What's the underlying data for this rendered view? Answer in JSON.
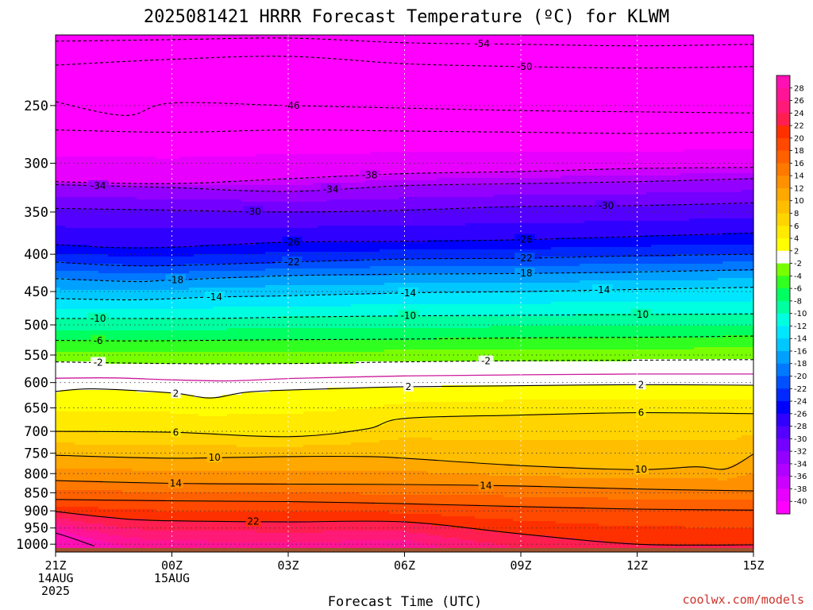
{
  "title": "2025081421 HRRR Forecast Temperature (ºC) for KLWM",
  "credit": "coolwx.com/models",
  "colors": {
    "background": "#ffffff",
    "ground": "#a0522d",
    "zero_line": "#cc1a9a",
    "credit": "#d0322b"
  },
  "chart_data": {
    "type": "heatmap",
    "title": "2025081421 HRRR Forecast Temperature (ºC) for KLWM",
    "xlabel": "Forecast Time (UTC)",
    "ylabel": "",
    "x_domain_hours": [
      0,
      18
    ],
    "x_ticks": [
      {
        "h": 0,
        "l1": "21Z",
        "l2": "14AUG",
        "l3": "2025"
      },
      {
        "h": 3,
        "l1": "00Z",
        "l2": "15AUG",
        "l3": ""
      },
      {
        "h": 6,
        "l1": "03Z",
        "l2": "",
        "l3": ""
      },
      {
        "h": 9,
        "l1": "06Z",
        "l2": "",
        "l3": ""
      },
      {
        "h": 12,
        "l1": "09Z",
        "l2": "",
        "l3": ""
      },
      {
        "h": 15,
        "l1": "12Z",
        "l2": "",
        "l3": ""
      },
      {
        "h": 18,
        "l1": "15Z",
        "l2": "",
        "l3": ""
      }
    ],
    "y_axis": "pressure (hPa), log scale, inverted",
    "y_domain_hpa": [
      1025,
      200
    ],
    "y_ticks": [
      250,
      300,
      350,
      400,
      450,
      500,
      550,
      600,
      650,
      700,
      750,
      800,
      850,
      900,
      950,
      1000
    ],
    "ground_pressure_hpa": 1012,
    "colorbar": {
      "unit": "ºC",
      "boundaries": [
        -42,
        -40,
        -38,
        -36,
        -34,
        -32,
        -30,
        -28,
        -26,
        -24,
        -22,
        -20,
        -18,
        -16,
        -14,
        -12,
        -10,
        -8,
        -6,
        -4,
        -2,
        2,
        4,
        6,
        8,
        10,
        12,
        14,
        16,
        18,
        20,
        22,
        24,
        26,
        28,
        30
      ],
      "colors": [
        "#ff00ff",
        "#e800ff",
        "#cc00ff",
        "#b000ff",
        "#9400ff",
        "#7400ff",
        "#5400ff",
        "#3000ff",
        "#0000ff",
        "#0028ff",
        "#0050ff",
        "#0078ff",
        "#00a0ff",
        "#00c8ff",
        "#00e6ff",
        "#00ffe0",
        "#00ffa0",
        "#00ff60",
        "#30ff20",
        "#78ff00",
        "#ffffff",
        "#ffff00",
        "#ffea00",
        "#ffd400",
        "#ffbe00",
        "#ffa800",
        "#ff9000",
        "#ff7800",
        "#ff6000",
        "#ff4800",
        "#ff3000",
        "#ff1e50",
        "#ff1a78",
        "#ff1496",
        "#ff10b4"
      ],
      "labels": [
        28,
        26,
        24,
        22,
        20,
        18,
        16,
        14,
        12,
        10,
        8,
        6,
        4,
        2,
        -2,
        -4,
        -6,
        -8,
        -10,
        -12,
        -14,
        -16,
        -18,
        -20,
        -22,
        -24,
        -26,
        -28,
        -30,
        -32,
        -34,
        -36,
        -38,
        -40
      ]
    },
    "isotherms": [
      {
        "t": -54,
        "label_hours": [
          11.0
        ],
        "p": [
          [
            0,
            204
          ],
          [
            3,
            203
          ],
          [
            6,
            202
          ],
          [
            9,
            205
          ],
          [
            12,
            206
          ],
          [
            15,
            207
          ],
          [
            18,
            206
          ]
        ]
      },
      {
        "t": -50,
        "label_hours": [
          12.1
        ],
        "p": [
          [
            0,
            220
          ],
          [
            3,
            216
          ],
          [
            6,
            214
          ],
          [
            9,
            219
          ],
          [
            12,
            221
          ],
          [
            15,
            222
          ],
          [
            18,
            221
          ]
        ]
      },
      {
        "t": -46,
        "label_hours": [
          6.1
        ],
        "p": [
          [
            0,
            247
          ],
          [
            1.8,
            258
          ],
          [
            3,
            248
          ],
          [
            6,
            250
          ],
          [
            9,
            252
          ],
          [
            12,
            254
          ],
          [
            15,
            255
          ],
          [
            18,
            256
          ]
        ]
      },
      {
        "t": -42,
        "label_hours": [],
        "p": [
          [
            0,
            270
          ],
          [
            3,
            272
          ],
          [
            6,
            270
          ],
          [
            9,
            271
          ],
          [
            12,
            272
          ],
          [
            15,
            273
          ],
          [
            18,
            272
          ]
        ]
      },
      {
        "t": -38,
        "label_hours": [
          8.1
        ],
        "p": [
          [
            0,
            318
          ],
          [
            3,
            320
          ],
          [
            6,
            315
          ],
          [
            9,
            310
          ],
          [
            12,
            308
          ],
          [
            15,
            305
          ],
          [
            18,
            304
          ]
        ]
      },
      {
        "t": -34,
        "label_hours": [
          1.1,
          7.1
        ],
        "p": [
          [
            0,
            321
          ],
          [
            3,
            324
          ],
          [
            6,
            328
          ],
          [
            9,
            322
          ],
          [
            12,
            320
          ],
          [
            15,
            318
          ],
          [
            18,
            315
          ]
        ]
      },
      {
        "t": -30,
        "label_hours": [
          5.1,
          14.2
        ],
        "p": [
          [
            0,
            346
          ],
          [
            3,
            348
          ],
          [
            6,
            350
          ],
          [
            9,
            348
          ],
          [
            12,
            344
          ],
          [
            15,
            343
          ],
          [
            18,
            340
          ]
        ]
      },
      {
        "t": -26,
        "label_hours": [
          6.1,
          12.1
        ],
        "p": [
          [
            0,
            388
          ],
          [
            2.3,
            392
          ],
          [
            6,
            385
          ],
          [
            9,
            384
          ],
          [
            12,
            382
          ],
          [
            15,
            378
          ],
          [
            18,
            374
          ]
        ]
      },
      {
        "t": -22,
        "label_hours": [
          6.1,
          12.1
        ],
        "p": [
          [
            0,
            410
          ],
          [
            2.3,
            415
          ],
          [
            6,
            410
          ],
          [
            9,
            406
          ],
          [
            12,
            405
          ],
          [
            15,
            402
          ],
          [
            18,
            400
          ]
        ]
      },
      {
        "t": -18,
        "label_hours": [
          3.1,
          12.1
        ],
        "p": [
          [
            0,
            432
          ],
          [
            2,
            436
          ],
          [
            3,
            434
          ],
          [
            6,
            428
          ],
          [
            9,
            426
          ],
          [
            12,
            425
          ],
          [
            15,
            423
          ],
          [
            18,
            420
          ]
        ]
      },
      {
        "t": -14,
        "label_hours": [
          4.1,
          9.1,
          14.1
        ],
        "p": [
          [
            0,
            460
          ],
          [
            2,
            462
          ],
          [
            4,
            458
          ],
          [
            6,
            456
          ],
          [
            9,
            452
          ],
          [
            12,
            450
          ],
          [
            15,
            447
          ],
          [
            18,
            444
          ]
        ]
      },
      {
        "t": -10,
        "label_hours": [
          1.1,
          9.1,
          15.1
        ],
        "p": [
          [
            0,
            490
          ],
          [
            2,
            490
          ],
          [
            4,
            490
          ],
          [
            6,
            488
          ],
          [
            9,
            486
          ],
          [
            12,
            485
          ],
          [
            15,
            484
          ],
          [
            18,
            483
          ]
        ]
      },
      {
        "t": -6,
        "label_hours": [
          1.1
        ],
        "p": [
          [
            0,
            525
          ],
          [
            2,
            526
          ],
          [
            4,
            525
          ],
          [
            6,
            524
          ],
          [
            9,
            523
          ],
          [
            12,
            521
          ],
          [
            15,
            520
          ],
          [
            18,
            518
          ]
        ]
      },
      {
        "t": -2,
        "label_hours": [
          1.1,
          11.1
        ],
        "p": [
          [
            0,
            562
          ],
          [
            3,
            565
          ],
          [
            6,
            565
          ],
          [
            9,
            562
          ],
          [
            12,
            560
          ],
          [
            15,
            559
          ],
          [
            18,
            558
          ]
        ]
      },
      {
        "t": 2,
        "label_hours": [
          3.1,
          9.1,
          15.1
        ],
        "p": [
          [
            0,
            617
          ],
          [
            1,
            612
          ],
          [
            3,
            620
          ],
          [
            4,
            630
          ],
          [
            5,
            618
          ],
          [
            7,
            612
          ],
          [
            9,
            608
          ],
          [
            12,
            606
          ],
          [
            15,
            604
          ],
          [
            18,
            605
          ]
        ]
      },
      {
        "t": 6,
        "label_hours": [
          3.1,
          15.1
        ],
        "p": [
          [
            0,
            700
          ],
          [
            3,
            702
          ],
          [
            6,
            712
          ],
          [
            8,
            695
          ],
          [
            9,
            672
          ],
          [
            12,
            665
          ],
          [
            15,
            660
          ],
          [
            18,
            662
          ]
        ]
      },
      {
        "t": 10,
        "label_hours": [
          4.1,
          15.1
        ],
        "p": [
          [
            0,
            755
          ],
          [
            3,
            762
          ],
          [
            6,
            758
          ],
          [
            8,
            758
          ],
          [
            9,
            762
          ],
          [
            12,
            780
          ],
          [
            15,
            790
          ],
          [
            16.5,
            783
          ],
          [
            17.3,
            788
          ],
          [
            18,
            752
          ]
        ]
      },
      {
        "t": 14,
        "label_hours": [
          3.1,
          11.1
        ],
        "p": [
          [
            0,
            818
          ],
          [
            3,
            825
          ],
          [
            6,
            827
          ],
          [
            9,
            828
          ],
          [
            12,
            832
          ],
          [
            15,
            840
          ],
          [
            18,
            845
          ]
        ]
      },
      {
        "t": 18,
        "label_hours": [],
        "p": [
          [
            0,
            868
          ],
          [
            3,
            872
          ],
          [
            6,
            874
          ],
          [
            9,
            880
          ],
          [
            12,
            888
          ],
          [
            15,
            895
          ],
          [
            18,
            898
          ]
        ]
      },
      {
        "t": 22,
        "label_hours": [
          5.1
        ],
        "p": [
          [
            0,
            902
          ],
          [
            2,
            925
          ],
          [
            4,
            930
          ],
          [
            6,
            932
          ],
          [
            9,
            932
          ],
          [
            12,
            968
          ],
          [
            15,
            1000
          ],
          [
            18,
            1002
          ]
        ]
      },
      {
        "t": 26,
        "label_hours": [],
        "p": [
          [
            0,
            965
          ],
          [
            0.4,
            980
          ],
          [
            1,
            1006
          ]
        ]
      }
    ]
  }
}
